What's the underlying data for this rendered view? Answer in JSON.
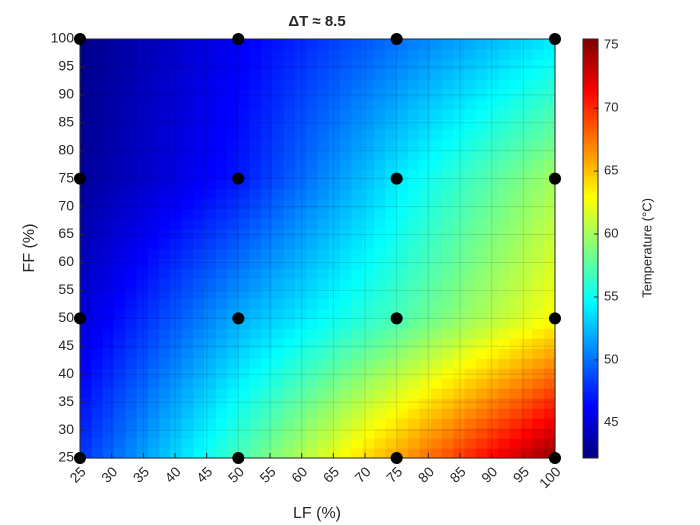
{
  "chart_data": {
    "type": "contour",
    "title": "ΔT ≈ 8.5",
    "xlabel": "LF (%)",
    "ylabel": "FF (%)",
    "colorbar_label": "Temperature (°C)",
    "x": [
      25,
      50,
      75,
      100
    ],
    "y": [
      25,
      50,
      75,
      100
    ],
    "z": [
      [
        48,
        57,
        66,
        75
      ],
      [
        45,
        52,
        57,
        63
      ],
      [
        43,
        47,
        54,
        60
      ],
      [
        42.5,
        46,
        50,
        54
      ]
    ],
    "xlim": [
      25,
      100
    ],
    "ylim": [
      25,
      100
    ],
    "xticks": [
      25,
      30,
      35,
      40,
      45,
      50,
      55,
      60,
      65,
      70,
      75,
      80,
      85,
      90,
      95,
      100
    ],
    "yticks": [
      25,
      30,
      35,
      40,
      45,
      50,
      55,
      60,
      65,
      70,
      75,
      80,
      85,
      90,
      95,
      100
    ],
    "clim": [
      42.2,
      75.5
    ],
    "cticks": [
      45,
      50,
      55,
      60,
      65,
      70,
      75
    ],
    "colormap": "jet",
    "marker_color": "#000000",
    "grid": true
  }
}
